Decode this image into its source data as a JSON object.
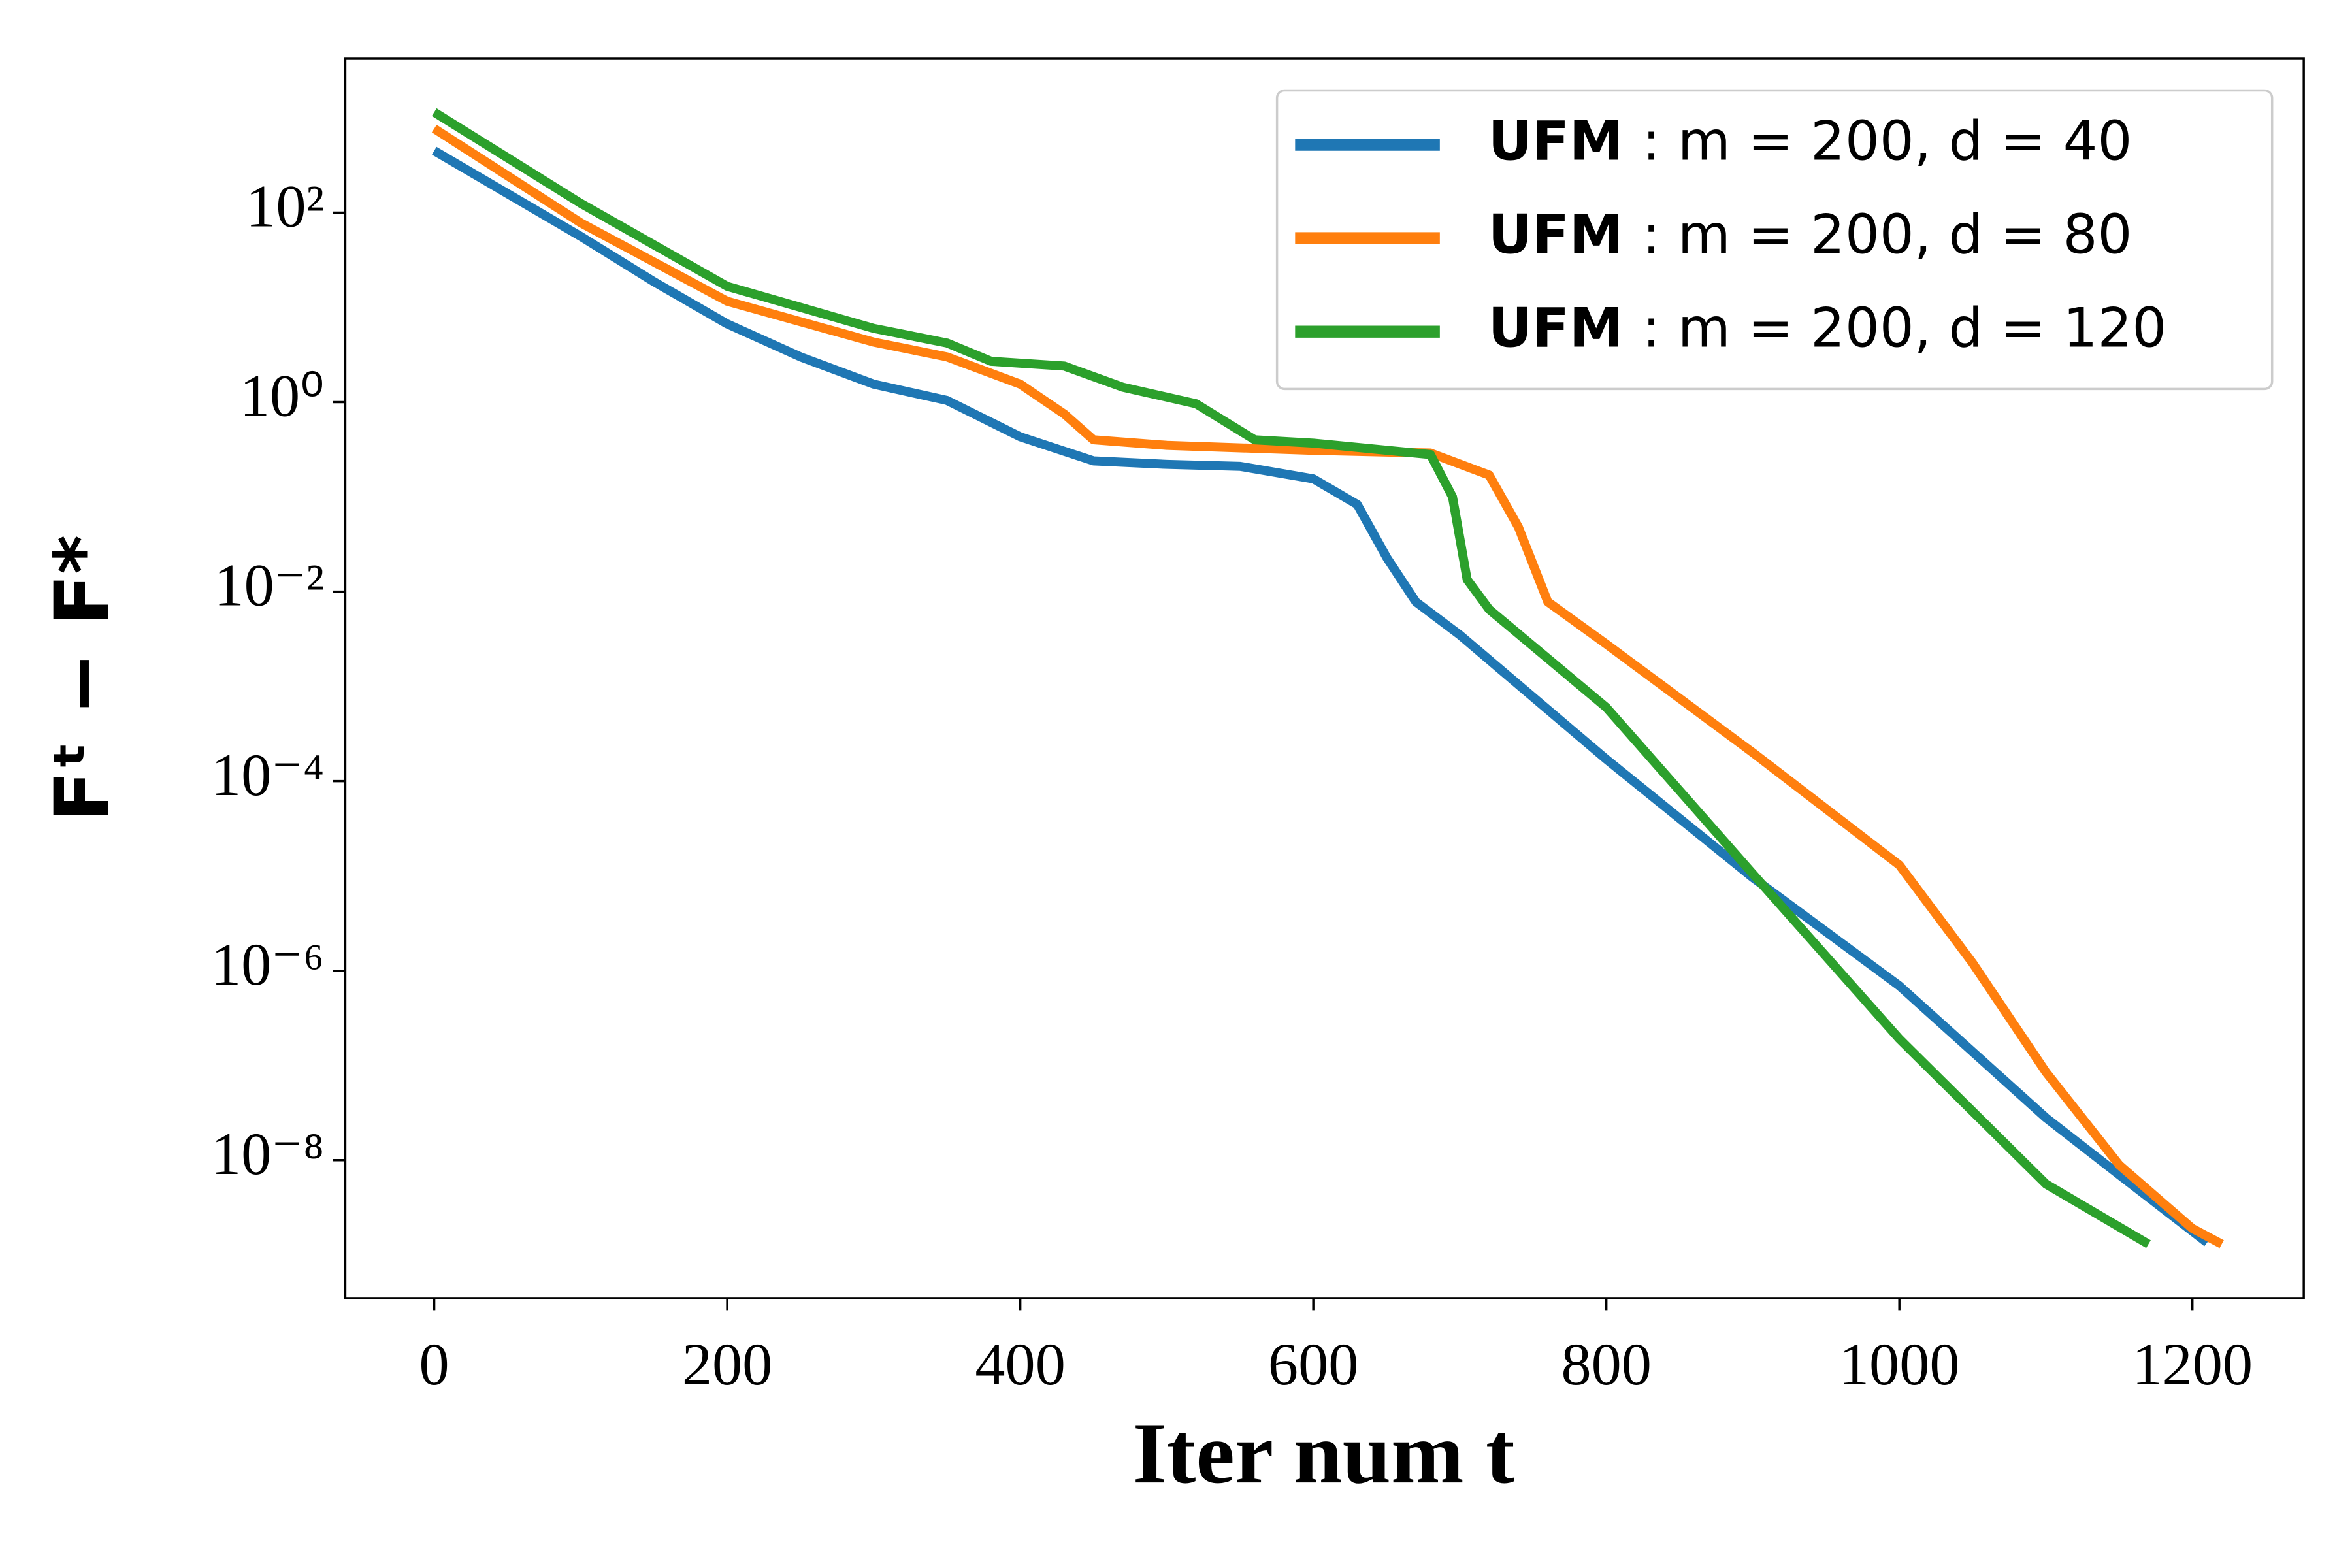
{
  "chart_data": {
    "type": "line",
    "x_label": "Iter num t",
    "y_label": "Fᵗ − F*",
    "y_scale": "log",
    "xlim": [
      -60.7,
      1276
    ],
    "ylim": [
      3.5e-10,
      4200
    ],
    "xticks": [
      0,
      200,
      400,
      600,
      800,
      1000,
      1200
    ],
    "yticks": [
      {
        "value": 100,
        "label": "10²"
      },
      {
        "value": 1,
        "label": "10⁰"
      },
      {
        "value": 0.01,
        "label": "10⁻²"
      },
      {
        "value": 0.0001,
        "label": "10⁻⁴"
      },
      {
        "value": 1e-06,
        "label": "10⁻⁶"
      },
      {
        "value": 1e-08,
        "label": "10⁻⁸"
      }
    ],
    "legend": "upper right",
    "series": [
      {
        "name": "UFM : m = 200, d = 40",
        "color": "#1f77b4",
        "x": [
          0,
          100,
          150,
          200,
          250,
          300,
          350,
          400,
          450,
          500,
          550,
          600,
          630,
          650,
          670,
          700,
          800,
          900,
          1000,
          1100,
          1150,
          1210
        ],
        "values": [
          450,
          56,
          18.6,
          6.7,
          3.0,
          1.55,
          1.04,
          0.43,
          0.24,
          0.22,
          0.21,
          0.155,
          0.083,
          0.023,
          0.0078,
          0.0035,
          0.00017,
          9.6e-06,
          6.9e-07,
          2.8e-08,
          7e-09,
          1.35e-09
        ]
      },
      {
        "name": "UFM : m = 200, d = 80",
        "color": "#ff7f0e",
        "x": [
          0,
          100,
          200,
          300,
          350,
          400,
          430,
          450,
          500,
          600,
          680,
          720,
          740,
          760,
          800,
          900,
          1000,
          1050,
          1100,
          1150,
          1200,
          1220
        ],
        "values": [
          770,
          78,
          11.6,
          4.3,
          3.0,
          1.55,
          0.75,
          0.4,
          0.35,
          0.31,
          0.29,
          0.17,
          0.048,
          0.0078,
          0.0028,
          0.0002,
          1.3e-05,
          1.2e-06,
          8.5e-08,
          8.9e-09,
          1.9e-09,
          1.3e-09
        ]
      },
      {
        "name": "UFM : m = 200, d = 120",
        "color": "#2ca02c",
        "x": [
          0,
          100,
          200,
          300,
          350,
          380,
          430,
          470,
          520,
          560,
          600,
          680,
          695,
          705,
          720,
          800,
          900,
          1000,
          1100,
          1170
        ],
        "values": [
          1150,
          125,
          16.7,
          6.0,
          4.2,
          2.7,
          2.4,
          1.44,
          0.96,
          0.4,
          0.37,
          0.28,
          0.1,
          0.0134,
          0.0065,
          0.0006,
          1.05e-05,
          1.9e-07,
          5.6e-09,
          1.3e-09
        ]
      }
    ]
  }
}
